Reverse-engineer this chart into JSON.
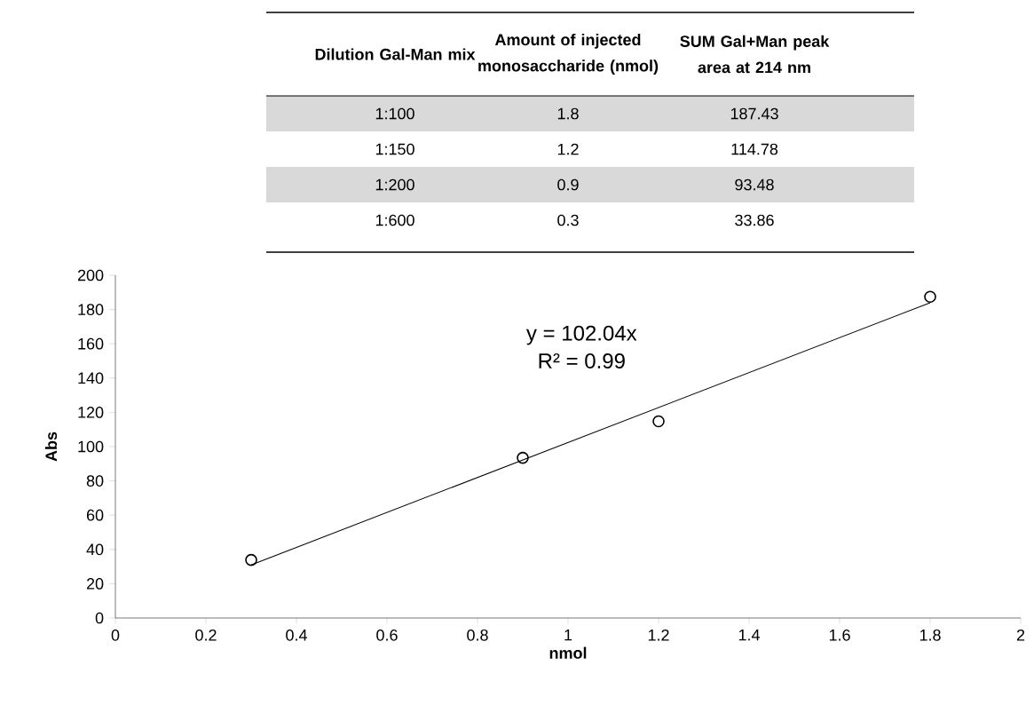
{
  "chart_data": [
    {
      "type": "other",
      "annotations": [
        "Dilution Gal-Man mix",
        "Amount of injected monosaccharide (nmol)",
        "SUM Gal+Man peak area at 214 nm",
        "1:100",
        "1.8",
        "187.43",
        "1:150",
        "1.2",
        "114.78",
        "1:200",
        "0.9",
        "93.48",
        "1:600",
        "0.3",
        "33.86"
      ]
    },
    {
      "type": "scatter",
      "xlabel": "nmol",
      "ylabel": "Abs",
      "annotations": [
        "y = 102.04x",
        "R² = 0.99"
      ],
      "series": [
        {
          "color": "#000000",
          "marker": "circle",
          "x": [
            1.8,
            1.2,
            0.9,
            0.3
          ],
          "values": [
            187.43,
            114.78,
            93.48,
            33.86
          ]
        },
        {
          "type": "line",
          "color": "#000000",
          "marker": "none",
          "x": [
            0.3,
            1.8
          ],
          "values": [
            31,
            184
          ]
        }
      ],
      "xlim": [
        0,
        2
      ],
      "ylim": [
        0,
        200
      ],
      "xticks": [
        0,
        0.2,
        0.4,
        0.6,
        0.8,
        1,
        1.2,
        1.4,
        1.6,
        1.8,
        2
      ],
      "yticks": [
        0,
        20,
        40,
        60,
        80,
        100,
        120,
        140,
        160,
        180,
        200
      ],
      "grid": false
    }
  ]
}
